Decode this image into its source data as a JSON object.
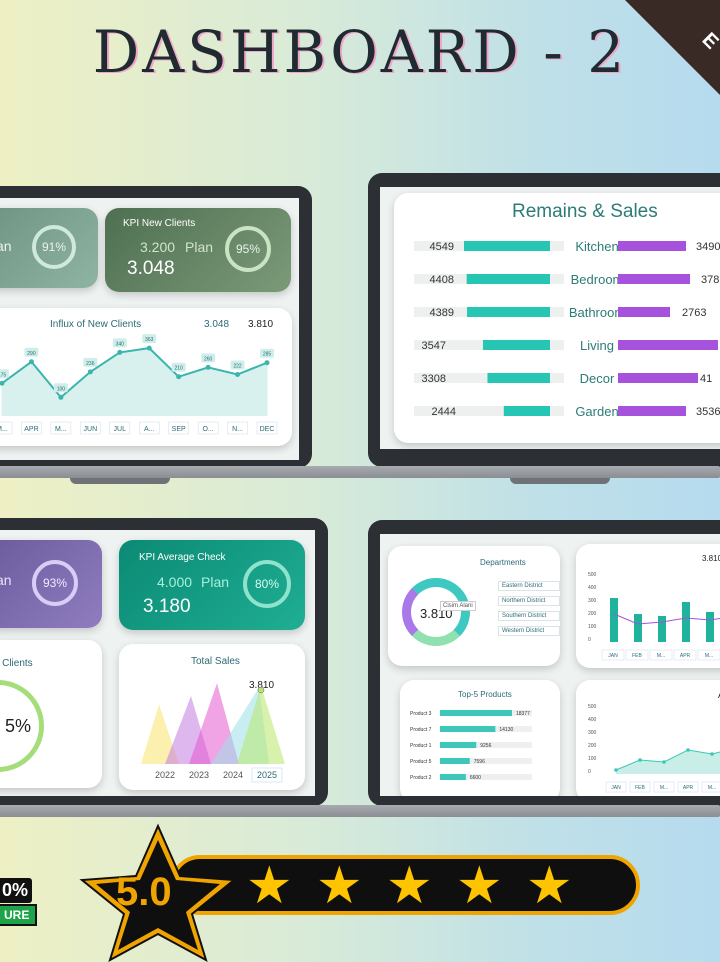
{
  "page": {
    "title": "DASHBOARD - 2",
    "corner_label": "E"
  },
  "panel1": {
    "kpi_left": {
      "plan_label": "an",
      "percent": "91%"
    },
    "kpi_new_clients": {
      "title": "KPI New Clients",
      "plan_value": "3.200",
      "plan_label": "Plan",
      "actual": "3.048",
      "percent": "95%"
    },
    "influx": {
      "title": "Influx of New Clients",
      "value_a": "3.048",
      "value_b": "3.810"
    }
  },
  "panel2": {
    "title": "Remains & Sales"
  },
  "panel3": {
    "kpi_left": {
      "plan_label": "an",
      "percent": "93%"
    },
    "kpi_avg_check": {
      "title": "KPI Average Check",
      "plan_value": "4.000",
      "plan_label": "Plan",
      "actual": "3.180",
      "percent": "80%"
    },
    "clients_card": {
      "title": "r Clients",
      "percent": "5%"
    },
    "total_sales": {
      "title": "Total Sales",
      "value": "3.810",
      "years": [
        "2022",
        "2023",
        "2024",
        "2025"
      ]
    }
  },
  "panel4": {
    "departments": {
      "title": "Departments",
      "center_value": "3.810",
      "tooltip": "Cisim Alani",
      "legend": [
        "Eastern District",
        "Northern District",
        "Southern District",
        "Western District"
      ]
    },
    "bars_chart": {
      "value": "3.810",
      "yticks": [
        "500",
        "400",
        "300",
        "200",
        "100",
        "0"
      ],
      "months": [
        "JAN",
        "FEB",
        "M...",
        "APR",
        "M..."
      ]
    },
    "top5": {
      "title": "Top-5 Products"
    },
    "area_chart": {
      "label": "A",
      "yticks": [
        "500",
        "400",
        "300",
        "200",
        "100",
        "0"
      ],
      "months": [
        "JAN",
        "FEB",
        "M...",
        "APR",
        "M..."
      ]
    }
  },
  "badge": {
    "percent": "0%",
    "ure": "URE",
    "rating": "5.0",
    "stars": 5
  },
  "chart_data": [
    {
      "type": "line",
      "title": "Influx of New Clients",
      "categories": [
        "M...",
        "APR",
        "M...",
        "JUN",
        "JUL",
        "A...",
        "SEP",
        "O...",
        "N...",
        "DEC"
      ],
      "values": [
        175,
        290,
        100,
        236,
        340,
        363,
        210,
        260,
        222,
        285
      ]
    },
    {
      "type": "bar",
      "title": "Remains & Sales",
      "categories": [
        "Kitchen",
        "Bedroom",
        "Bathroom",
        "Living",
        "Decor",
        "Garden"
      ],
      "series": [
        {
          "values": [
            4549,
            4408,
            4389,
            3547,
            3308,
            2444
          ]
        },
        {
          "values": [
            3490,
            378,
            2763,
            null,
            41,
            3536
          ]
        }
      ],
      "right_labels": [
        "3490",
        "378",
        "2763",
        "",
        "41",
        "3536"
      ]
    },
    {
      "type": "bar",
      "title": "Top-5 Products",
      "categories": [
        "Product 3",
        "Product 7",
        "Product 1",
        "Product 5",
        "Product 2"
      ],
      "values": [
        18377,
        14130,
        9256,
        7596,
        6600
      ]
    }
  ]
}
